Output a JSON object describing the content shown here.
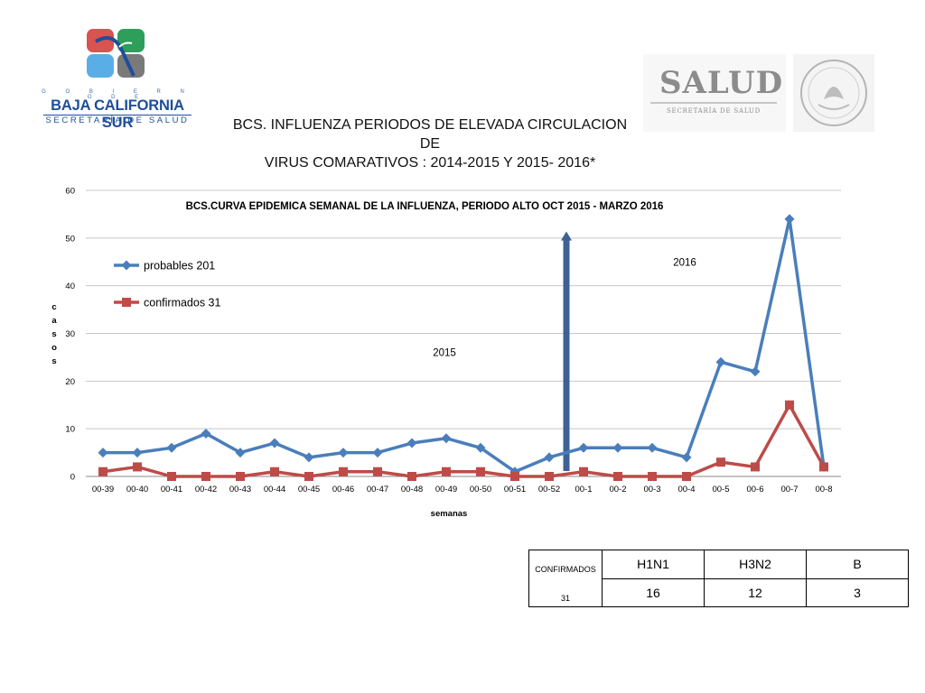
{
  "header": {
    "logo_left": {
      "gobierno": "G O B I E R N O   D E",
      "state": "BAJA CALIFORNIA SUR",
      "secretaria": "SECRETARÍA DE SALUD",
      "colors": [
        "#d9534f",
        "#2e9e5b",
        "#5aaee6",
        "#7a7a7a"
      ]
    },
    "logo_right": {
      "salud": "SALUD",
      "subtitle": "SECRETARÍA DE SALUD"
    },
    "title_line1": "BCS. INFLUENZA PERIODOS DE ELEVADA CIRCULACION DE",
    "title_line2": "VIRUS COMARATIVOS : 2014-2015 Y 2015- 2016*"
  },
  "chart_data": {
    "type": "line",
    "title": "BCS.CURVA EPIDEMICA SEMANAL DE LA INFLUENZA, PERIODO ALTO  OCT 2015 - MARZO 2016",
    "xlabel": "semanas",
    "ylabel": "c a s o s",
    "ylabel_letters": [
      "c",
      "a",
      "s",
      "o",
      "s"
    ],
    "ylim": [
      0,
      60
    ],
    "yticks": [
      0,
      10,
      20,
      30,
      40,
      50,
      60
    ],
    "grid": true,
    "legend_position": "top-left",
    "categories": [
      "00-39",
      "00-40",
      "00-41",
      "00-42",
      "00-43",
      "00-44",
      "00-45",
      "00-46",
      "00-47",
      "00-48",
      "00-49",
      "00-50",
      "00-51",
      "00-52",
      "00-1",
      "00-2",
      "00-3",
      "00-4",
      "00-5",
      "00-6",
      "00-7",
      "00-8"
    ],
    "series": [
      {
        "name": "probables 201",
        "color": "#4a7ebb",
        "marker": "diamond",
        "values": [
          5,
          5,
          6,
          9,
          5,
          7,
          4,
          5,
          5,
          7,
          8,
          6,
          1,
          4,
          6,
          6,
          6,
          4,
          24,
          22,
          54,
          2
        ]
      },
      {
        "name": "confirmados 31",
        "color": "#be4b48",
        "marker": "square",
        "values": [
          1,
          2,
          0,
          0,
          0,
          1,
          0,
          1,
          1,
          0,
          1,
          1,
          0,
          0,
          1,
          0,
          0,
          0,
          3,
          2,
          15,
          2
        ]
      }
    ],
    "divider": {
      "between": [
        "00-52",
        "00-1"
      ],
      "height": 51,
      "color": "#3e6193"
    },
    "annotations": [
      {
        "text": "2015",
        "category_index": 10,
        "y": 26
      },
      {
        "text": "2016",
        "category_index": 17,
        "y": 45
      }
    ]
  },
  "table": {
    "label": "CONFIRMADOS",
    "total": "31",
    "headers": [
      "H1N1",
      "H3N2",
      "B"
    ],
    "values": [
      "16",
      "12",
      "3"
    ]
  }
}
